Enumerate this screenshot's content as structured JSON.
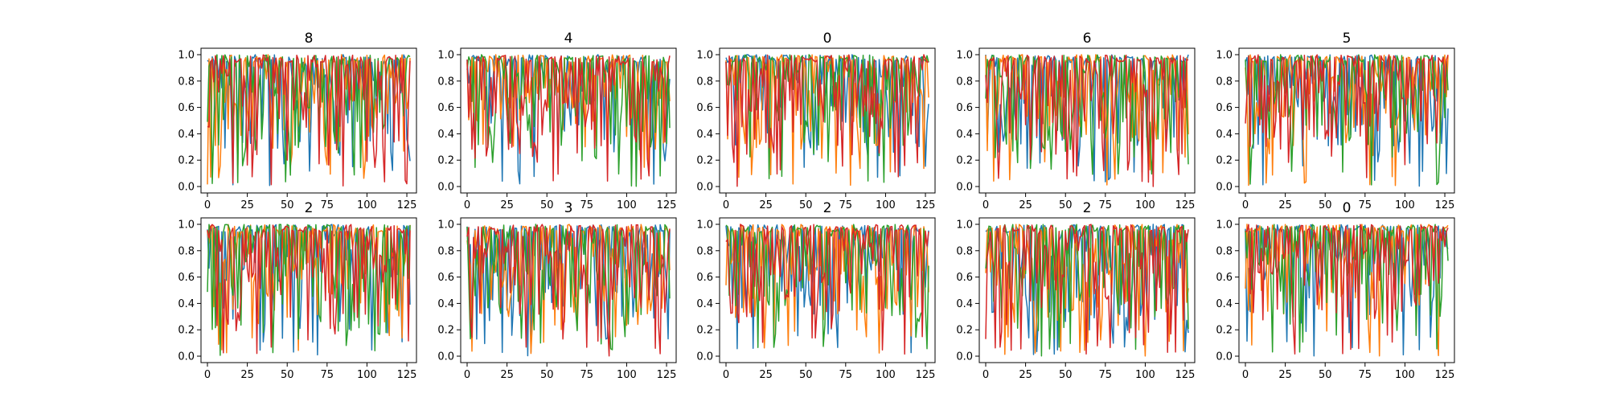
{
  "figure": {
    "background": "#ffffff",
    "series_colors": [
      "#1f77b4",
      "#ff7f0e",
      "#2ca02c",
      "#d62728"
    ]
  },
  "chart_data": [
    {
      "type": "line",
      "title": "8",
      "xlabel": "",
      "ylabel": "",
      "xlim": [
        0,
        127
      ],
      "ylim": [
        0,
        1
      ],
      "xticks": [
        "0",
        "25",
        "50",
        "75",
        "100",
        "125"
      ],
      "yticks": [
        "0.0",
        "0.2",
        "0.4",
        "0.6",
        "0.8",
        "1.0"
      ],
      "seed": 11,
      "series": [
        {
          "color": "#1f77b4",
          "values": []
        },
        {
          "color": "#ff7f0e",
          "values": []
        },
        {
          "color": "#2ca02c",
          "values": []
        },
        {
          "color": "#d62728",
          "values": []
        }
      ]
    },
    {
      "type": "line",
      "title": "4",
      "xlabel": "",
      "ylabel": "",
      "xlim": [
        0,
        127
      ],
      "ylim": [
        0,
        1
      ],
      "xticks": [
        "0",
        "25",
        "50",
        "75",
        "100",
        "125"
      ],
      "yticks": [
        "0.0",
        "0.2",
        "0.4",
        "0.6",
        "0.8",
        "1.0"
      ],
      "seed": 23,
      "series": [
        {
          "color": "#1f77b4",
          "values": []
        },
        {
          "color": "#ff7f0e",
          "values": []
        },
        {
          "color": "#2ca02c",
          "values": []
        },
        {
          "color": "#d62728",
          "values": []
        }
      ]
    },
    {
      "type": "line",
      "title": "0",
      "xlabel": "",
      "ylabel": "",
      "xlim": [
        0,
        127
      ],
      "ylim": [
        0,
        1
      ],
      "xticks": [
        "0",
        "25",
        "50",
        "75",
        "100",
        "125"
      ],
      "yticks": [
        "0.0",
        "0.2",
        "0.4",
        "0.6",
        "0.8",
        "1.0"
      ],
      "seed": 37,
      "series": [
        {
          "color": "#1f77b4",
          "values": []
        },
        {
          "color": "#ff7f0e",
          "values": []
        },
        {
          "color": "#2ca02c",
          "values": []
        },
        {
          "color": "#d62728",
          "values": []
        }
      ]
    },
    {
      "type": "line",
      "title": "6",
      "xlabel": "",
      "ylabel": "",
      "xlim": [
        0,
        127
      ],
      "ylim": [
        0,
        1
      ],
      "xticks": [
        "0",
        "25",
        "50",
        "75",
        "100",
        "125"
      ],
      "yticks": [
        "0.0",
        "0.2",
        "0.4",
        "0.6",
        "0.8",
        "1.0"
      ],
      "seed": 41,
      "series": [
        {
          "color": "#1f77b4",
          "values": []
        },
        {
          "color": "#ff7f0e",
          "values": []
        },
        {
          "color": "#2ca02c",
          "values": []
        },
        {
          "color": "#d62728",
          "values": []
        }
      ]
    },
    {
      "type": "line",
      "title": "5",
      "xlabel": "",
      "ylabel": "",
      "xlim": [
        0,
        127
      ],
      "ylim": [
        0,
        1
      ],
      "xticks": [
        "0",
        "25",
        "50",
        "75",
        "100",
        "125"
      ],
      "yticks": [
        "0.0",
        "0.2",
        "0.4",
        "0.6",
        "0.8",
        "1.0"
      ],
      "seed": 53,
      "series": [
        {
          "color": "#1f77b4",
          "values": []
        },
        {
          "color": "#ff7f0e",
          "values": []
        },
        {
          "color": "#2ca02c",
          "values": []
        },
        {
          "color": "#d62728",
          "values": []
        }
      ]
    },
    {
      "type": "line",
      "title": "2",
      "xlabel": "",
      "ylabel": "",
      "xlim": [
        0,
        127
      ],
      "ylim": [
        0,
        1
      ],
      "xticks": [
        "0",
        "25",
        "50",
        "75",
        "100",
        "125"
      ],
      "yticks": [
        "0.0",
        "0.2",
        "0.4",
        "0.6",
        "0.8",
        "1.0"
      ],
      "seed": 67,
      "series": [
        {
          "color": "#1f77b4",
          "values": []
        },
        {
          "color": "#ff7f0e",
          "values": []
        },
        {
          "color": "#2ca02c",
          "values": []
        },
        {
          "color": "#d62728",
          "values": []
        }
      ]
    },
    {
      "type": "line",
      "title": "3",
      "xlabel": "",
      "ylabel": "",
      "xlim": [
        0,
        127
      ],
      "ylim": [
        0,
        1
      ],
      "xticks": [
        "0",
        "25",
        "50",
        "75",
        "100",
        "125"
      ],
      "yticks": [
        "0.0",
        "0.2",
        "0.4",
        "0.6",
        "0.8",
        "1.0"
      ],
      "seed": 71,
      "series": [
        {
          "color": "#1f77b4",
          "values": []
        },
        {
          "color": "#ff7f0e",
          "values": []
        },
        {
          "color": "#2ca02c",
          "values": []
        },
        {
          "color": "#d62728",
          "values": []
        }
      ]
    },
    {
      "type": "line",
      "title": "2",
      "xlabel": "",
      "ylabel": "",
      "xlim": [
        0,
        127
      ],
      "ylim": [
        0,
        1
      ],
      "xticks": [
        "0",
        "25",
        "50",
        "75",
        "100",
        "125"
      ],
      "yticks": [
        "0.0",
        "0.2",
        "0.4",
        "0.6",
        "0.8",
        "1.0"
      ],
      "seed": 83,
      "series": [
        {
          "color": "#1f77b4",
          "values": []
        },
        {
          "color": "#ff7f0e",
          "values": []
        },
        {
          "color": "#2ca02c",
          "values": []
        },
        {
          "color": "#d62728",
          "values": []
        }
      ]
    },
    {
      "type": "line",
      "title": "2",
      "xlabel": "",
      "ylabel": "",
      "xlim": [
        0,
        127
      ],
      "ylim": [
        0,
        1
      ],
      "xticks": [
        "0",
        "25",
        "50",
        "75",
        "100",
        "125"
      ],
      "yticks": [
        "0.0",
        "0.2",
        "0.4",
        "0.6",
        "0.8",
        "1.0"
      ],
      "seed": 97,
      "series": [
        {
          "color": "#1f77b4",
          "values": []
        },
        {
          "color": "#ff7f0e",
          "values": []
        },
        {
          "color": "#2ca02c",
          "values": []
        },
        {
          "color": "#d62728",
          "values": []
        }
      ]
    },
    {
      "type": "line",
      "title": "0",
      "xlabel": "",
      "ylabel": "",
      "xlim": [
        0,
        127
      ],
      "ylim": [
        0,
        1
      ],
      "xticks": [
        "0",
        "25",
        "50",
        "75",
        "100",
        "125"
      ],
      "yticks": [
        "0.0",
        "0.2",
        "0.4",
        "0.6",
        "0.8",
        "1.0"
      ],
      "seed": 101,
      "series": [
        {
          "color": "#1f77b4",
          "values": []
        },
        {
          "color": "#ff7f0e",
          "values": []
        },
        {
          "color": "#2ca02c",
          "values": []
        },
        {
          "color": "#d62728",
          "values": []
        }
      ]
    }
  ]
}
